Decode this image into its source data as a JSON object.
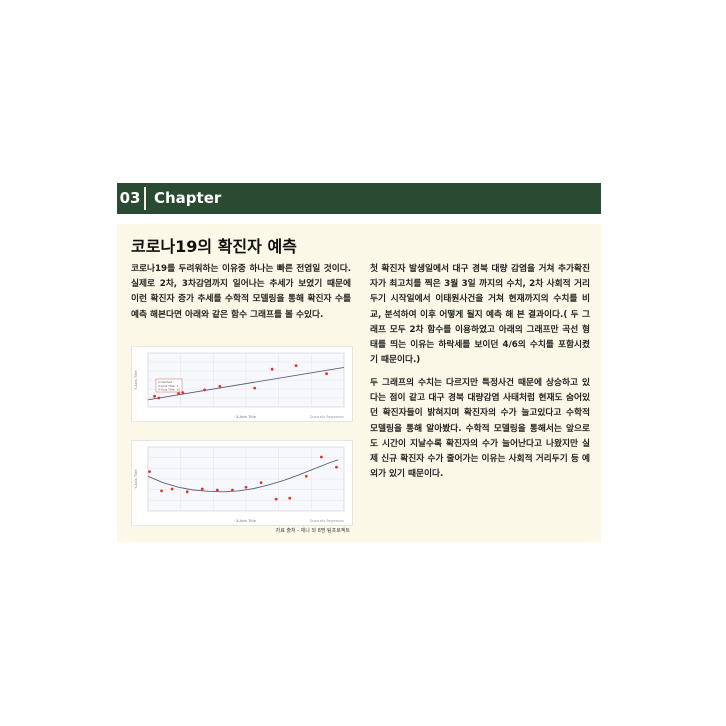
{
  "header": {
    "number": "03",
    "title": "Chapter"
  },
  "article": {
    "title": "코로나19의 확진자 예측",
    "paragraph1": " 코로나19를 두려워하는 이유중 하나는 빠른 전염일 것이다. 실제로 2차, 3차감염까지 일어나는 추세가 보였기 때문에 이런 확진자 증가 추세를 수학적 모델링을 통해  확진자 수를 예측 해본다면 아래와 같은 함수 그래프를 볼 수있다.",
    "paragraph2": " 첫 확진자 발생일에서 대구 경북 대량 감염을 거쳐 추가확진자가 최고치를 찍은 3월 3일 까지의 수치, 2차 사회적 거리두기 시작일에서 이태원사건을 거쳐 현재까지의 수치를 비교, 분석하여 이후 어떻게 될지 예측 해 본 결과이다.( 두 그래프 모두 2차 함수를 이용하였고 아래의 그래프만 곡선 형태를 띄는 이유는 하락세를 보이던 4/6의 수치를 포함시켰기 때문이다.)",
    "paragraph3": " 두 그래프의 수치는 다르지만 특정사건 때문에 상승하고 있다는 점이 같고 대구 경북 대량감염 사태처럼 현재도 숨어있던 확진자들이 밝혀지며 확진자의 수가 늘고있다고 수학적 모델링을 통해 알아봤다. 수학적 모델링을 통해서는 앞으로도 시간이 지날수록 확진자의 수가 늘어난다고 나왔지만 실제 신규 확진자 수가 줄어가는 이유는 사회적 거리두기 등 예외가 있기 때문이다.",
    "source": "자료 출처 - 재니 외 8명 팀프로젝트"
  },
  "colors": {
    "header_bg": "#2a4a31",
    "panel_bg": "#fbf8e8",
    "point": "#e8302c",
    "curve": "#5b5f7a"
  },
  "chart_data": [
    {
      "type": "scatter",
      "fit": "quadratic",
      "trend": "rising",
      "points": [
        [
          0.3,
          1.2
        ],
        [
          0.5,
          1.0
        ],
        [
          1.4,
          1.5
        ],
        [
          1.6,
          1.6
        ],
        [
          2.6,
          1.9
        ],
        [
          3.3,
          2.3
        ],
        [
          4.9,
          2.1
        ],
        [
          5.7,
          4.2
        ],
        [
          6.8,
          4.6
        ],
        [
          8.2,
          3.7
        ]
      ],
      "curve": [
        [
          0,
          0.8
        ],
        [
          9,
          4.4
        ]
      ],
      "xlim": [
        0,
        9
      ],
      "ylim": [
        0,
        6
      ],
      "xlabel": "X-Axis Title",
      "ylabel": "Y-Axis Title",
      "legend": [
        "Collected",
        "X-Axis Title: 1",
        "X-Axis Title: 10"
      ],
      "legend_position": "top-left",
      "footer": "Quadratic Regression"
    },
    {
      "type": "scatter",
      "fit": "quadratic",
      "trend": "u-shaped",
      "points": [
        [
          0.1,
          4.3
        ],
        [
          0.9,
          2.2
        ],
        [
          1.6,
          2.4
        ],
        [
          2.6,
          2.1
        ],
        [
          3.6,
          2.4
        ],
        [
          4.6,
          2.3
        ],
        [
          5.6,
          2.3
        ],
        [
          6.5,
          2.6
        ],
        [
          7.5,
          3.1
        ],
        [
          8.5,
          1.3
        ],
        [
          9.4,
          1.4
        ],
        [
          10.5,
          3.8
        ],
        [
          11.5,
          5.9
        ],
        [
          12.5,
          4.8
        ]
      ],
      "curve": [
        [
          0,
          3.8
        ],
        [
          1,
          3.1
        ],
        [
          2,
          2.6
        ],
        [
          3,
          2.3
        ],
        [
          4,
          2.15
        ],
        [
          5,
          2.1
        ],
        [
          6,
          2.2
        ],
        [
          7,
          2.45
        ],
        [
          8,
          2.85
        ],
        [
          9,
          3.35
        ],
        [
          10,
          3.95
        ],
        [
          11,
          4.6
        ],
        [
          12,
          5.25
        ],
        [
          12.6,
          5.6
        ]
      ],
      "xlim": [
        0,
        13
      ],
      "ylim": [
        0,
        7
      ],
      "xlabel": "X-Axis Title",
      "ylabel": "Y-Axis Title",
      "footer": "Quadratic Regression"
    }
  ]
}
